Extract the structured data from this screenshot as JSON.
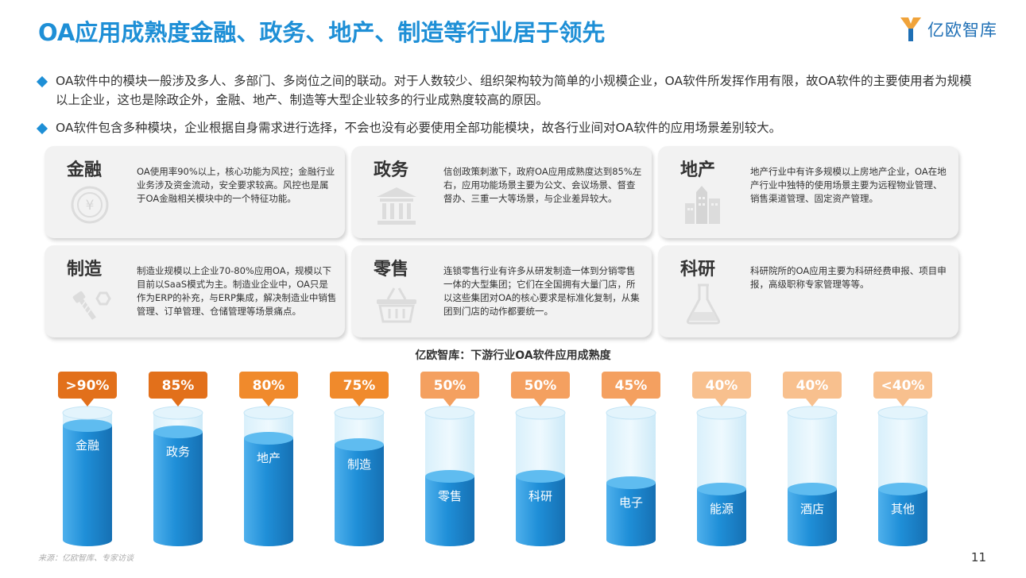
{
  "title": "OA应用成熟度金融、政务、地产、制造等行业居于领先",
  "logo": {
    "text": "亿欧智库",
    "icon": "yiou-logo-icon"
  },
  "bullets": [
    "OA软件中的模块一般涉及多人、多部门、多岗位之间的联动。对于人数较少、组织架构较为简单的小规模企业，OA软件所发挥作用有限，故OA软件的主要使用者为规模以上企业，这也是除政企外，金融、地产、制造等大型企业较多的行业成熟度较高的原因。",
    "OA软件包含多种模块，企业根据自身需求进行选择，不会也没有必要使用全部功能模块，故各行业间对OA软件的应用场景差别较大。"
  ],
  "cards": [
    {
      "title": "金融",
      "icon": "yuan-coin-icon",
      "desc": "OA使用率90%以上，核心功能为风控；金融行业业务涉及资金流动，安全要求较高。风控也是属于OA金融相关模块中的一个特征功能。"
    },
    {
      "title": "政务",
      "icon": "government-building-icon",
      "desc": "信创政策刺激下，政府OA应用成熟度达到85%左右，应用功能场景主要为公文、会议场景、督查督办、三重一大等场景，与企业差异较大。"
    },
    {
      "title": "地产",
      "icon": "city-buildings-icon",
      "desc": "地产行业中有许多规模以上房地产企业，OA在地产行业中独特的使用场景主要为远程物业管理、销售渠道管理、固定资产管理。"
    },
    {
      "title": "制造",
      "icon": "bolt-nut-icon",
      "desc": "制造业规模以上企业70-80%应用OA，规模以下目前以SaaS模式为主。制造业企业中，OA只是作为ERP的补充，与ERP集成，解决制造业中销售管理、订单管理、仓储管理等场景痛点。"
    },
    {
      "title": "零售",
      "icon": "shopping-basket-icon",
      "desc": "连锁零售行业有许多从研发制造一体到分销零售一体的大型集团；它们在全国拥有大量门店，所以这些集团对OA的核心要求是标准化复制，从集团到门店的动作都要统一。"
    },
    {
      "title": "科研",
      "icon": "flask-icon",
      "desc": "科研院所的OA应用主要为科研经费申报、项目申报，高级职称专家管理等等。"
    }
  ],
  "chart_data": {
    "type": "bar",
    "title": "亿欧智库：下游行业OA软件应用成熟度",
    "categories": [
      "金融",
      "政务",
      "地产",
      "制造",
      "零售",
      "科研",
      "电子",
      "能源",
      "酒店",
      "其他"
    ],
    "values": [
      90,
      85,
      80,
      75,
      50,
      50,
      45,
      40,
      40,
      40
    ],
    "value_labels": [
      ">90%",
      "85%",
      "80%",
      "75%",
      "50%",
      "50%",
      "45%",
      "40%",
      "40%",
      "<40%"
    ],
    "label_colors": [
      "#e2701b",
      "#e2701b",
      "#f08a2c",
      "#f08a2c",
      "#f4a060",
      "#f4a060",
      "#f4a060",
      "#f8c08e",
      "#f8c08e",
      "#f8c08e"
    ],
    "fill_color": "#1f8fd8",
    "ylim": [
      0,
      100
    ]
  },
  "source": "来源：亿欧智库、专家访谈",
  "page_number": "11"
}
